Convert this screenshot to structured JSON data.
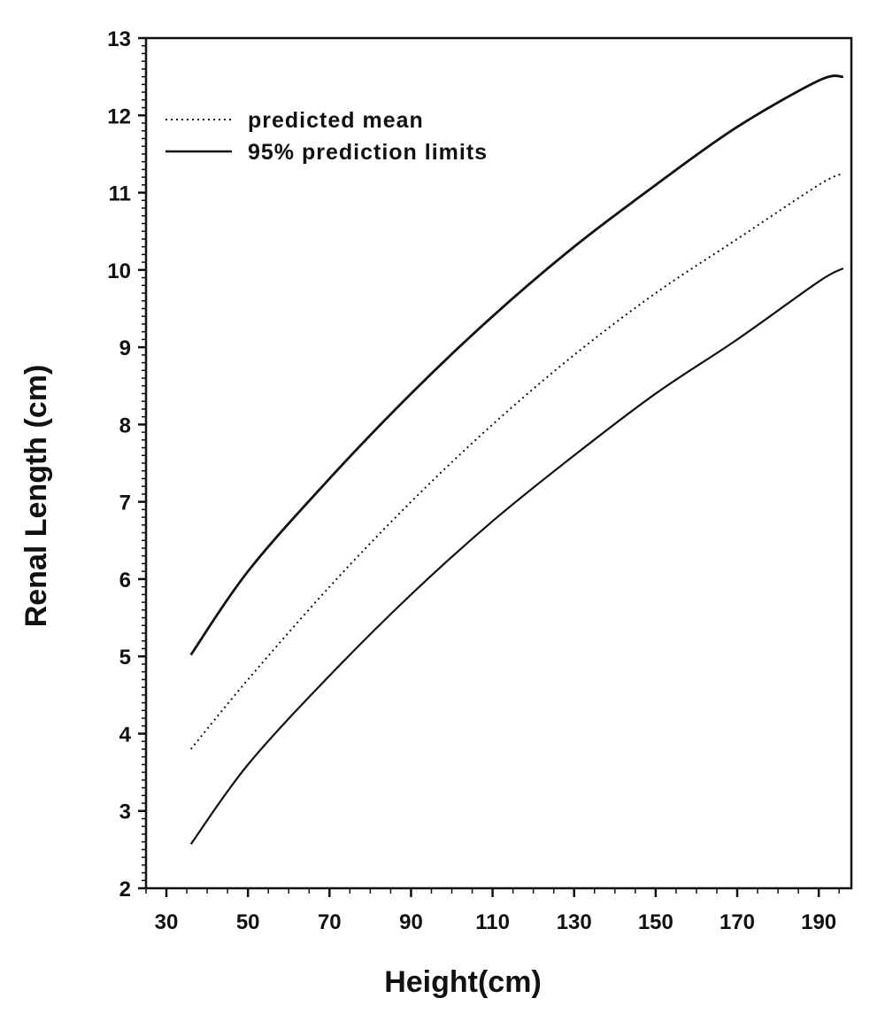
{
  "chart_data": {
    "type": "line",
    "xlabel": "Height(cm)",
    "ylabel": "Renal Length (cm)",
    "xlim": [
      25,
      198
    ],
    "ylim": [
      2,
      13
    ],
    "xticks": [
      30,
      50,
      70,
      90,
      110,
      130,
      150,
      170,
      190
    ],
    "yticks": [
      2,
      3,
      4,
      5,
      6,
      7,
      8,
      9,
      10,
      11,
      12,
      13
    ],
    "legend_position": "top-left",
    "x": [
      36,
      50,
      70,
      90,
      110,
      130,
      150,
      170,
      190,
      196
    ],
    "series": [
      {
        "name": "predicted mean",
        "style": "dotted",
        "values": [
          3.8,
          4.7,
          5.9,
          7.0,
          8.0,
          8.9,
          9.7,
          10.4,
          11.1,
          11.25
        ]
      },
      {
        "name": "95% prediction limits",
        "role": "upper",
        "style": "solid",
        "values": [
          5.02,
          6.1,
          7.3,
          8.4,
          9.4,
          10.3,
          11.1,
          11.85,
          12.45,
          12.5
        ]
      },
      {
        "name": "",
        "role": "lower",
        "style": "solid",
        "values": [
          2.57,
          3.6,
          4.75,
          5.8,
          6.75,
          7.6,
          8.4,
          9.1,
          9.85,
          10.02
        ]
      }
    ],
    "legend": [
      {
        "label": "predicted mean",
        "style": "dotted"
      },
      {
        "label": "95% prediction limits",
        "style": "solid"
      }
    ]
  }
}
